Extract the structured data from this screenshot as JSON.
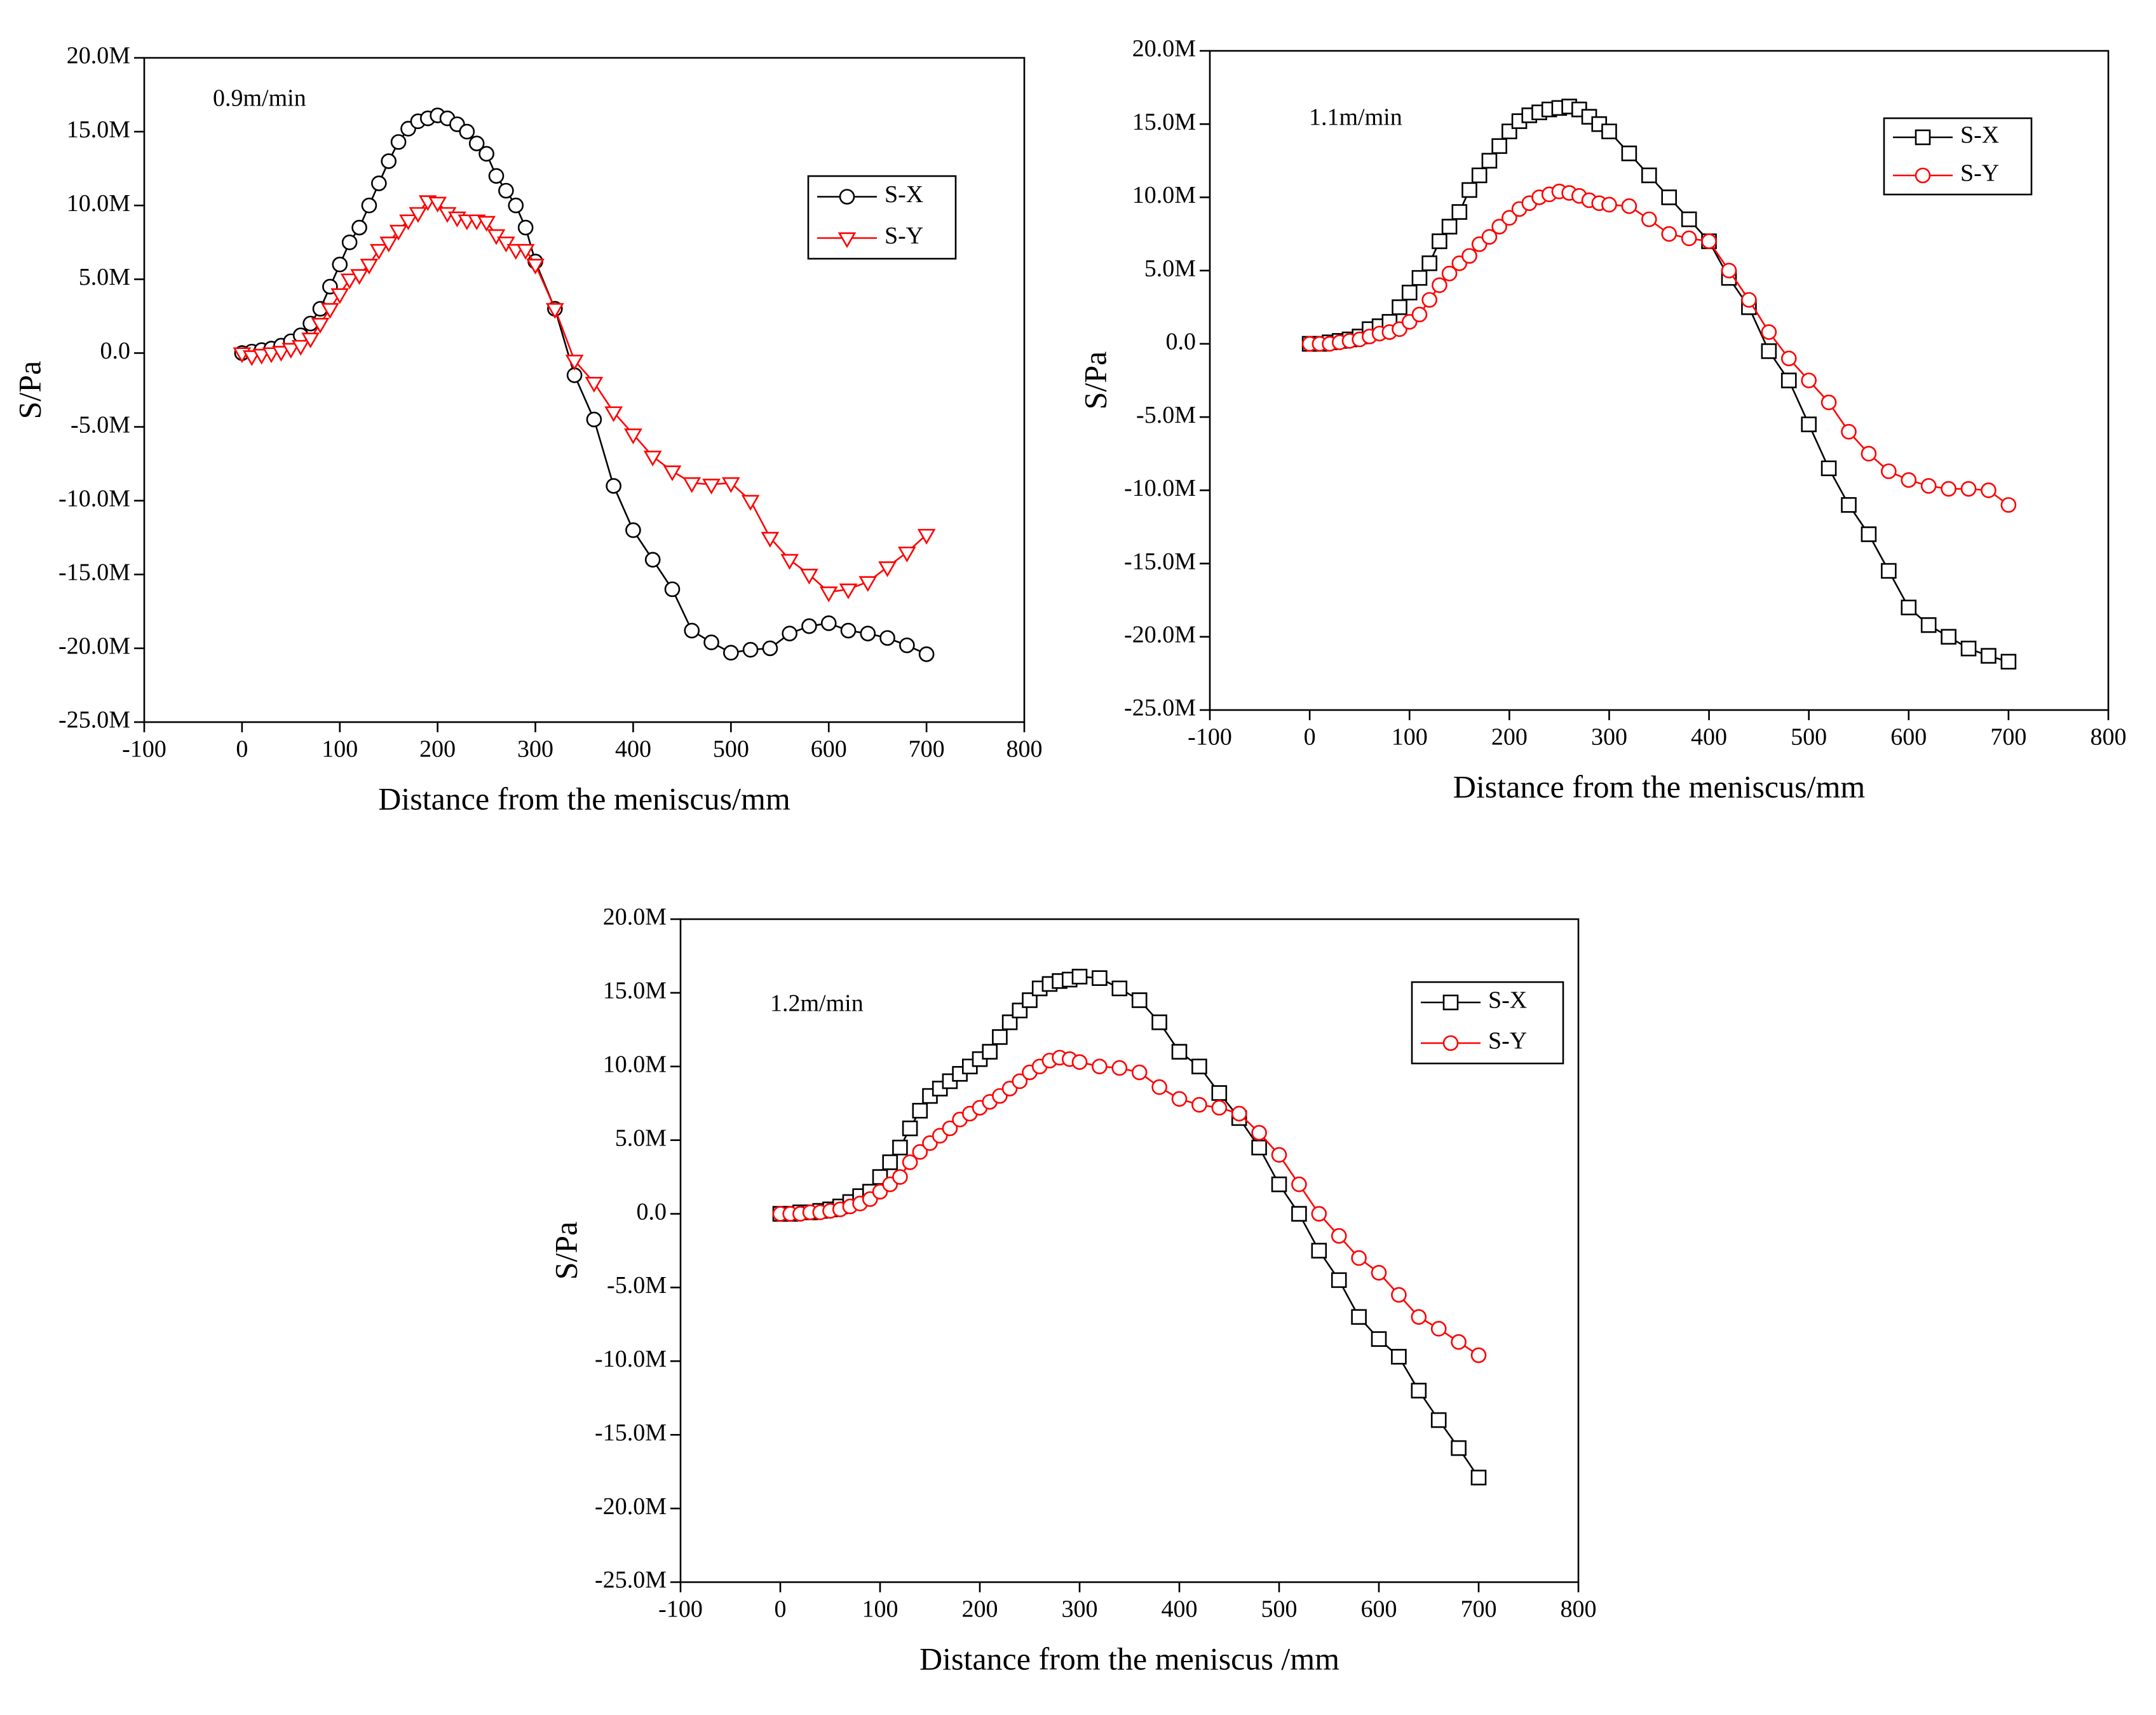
{
  "chart_data": [
    {
      "type": "line",
      "annotation": "0.9m/min",
      "xlabel": "Distance from the meniscus/mm",
      "ylabel": "S/Pa",
      "xlim": [
        -100,
        800
      ],
      "xticks": [
        -100,
        0,
        100,
        200,
        300,
        400,
        500,
        600,
        700,
        800
      ],
      "ylim": [
        -25000000.0,
        20000000.0
      ],
      "yticks": [
        {
          "value": -25000000.0,
          "label": "-25.0M"
        },
        {
          "value": -20000000.0,
          "label": "-20.0M"
        },
        {
          "value": -15000000.0,
          "label": "-15.0M"
        },
        {
          "value": -10000000.0,
          "label": "-10.0M"
        },
        {
          "value": -5000000.0,
          "label": "-5.0M"
        },
        {
          "value": 0,
          "label": "0.0"
        },
        {
          "value": 5000000.0,
          "label": "5.0M"
        },
        {
          "value": 10000000.0,
          "label": "10.0M"
        },
        {
          "value": 15000000.0,
          "label": "15.0M"
        },
        {
          "value": 20000000.0,
          "label": "20.0M"
        }
      ],
      "legend": "upper right",
      "x": [
        0,
        10,
        20,
        30,
        40,
        50,
        60,
        70,
        80,
        90,
        100,
        110,
        120,
        130,
        140,
        150,
        160,
        170,
        180,
        190,
        200,
        210,
        220,
        230,
        240,
        250,
        260,
        270,
        280,
        290,
        300,
        320,
        340,
        360,
        380,
        400,
        420,
        440,
        460,
        480,
        500,
        520,
        540,
        560,
        580,
        600,
        620,
        640,
        660,
        680,
        700
      ],
      "series": [
        {
          "name": "S-X",
          "color": "#000000",
          "marker": "circle",
          "values": [
            0,
            100000.0,
            200000.0,
            300000.0,
            500000.0,
            800000.0,
            1200000.0,
            2000000.0,
            3000000.0,
            4500000.0,
            6000000.0,
            7500000.0,
            8500000.0,
            10000000.0,
            11500000.0,
            13000000.0,
            14300000.0,
            15200000.0,
            15700000.0,
            15900000.0,
            16100000.0,
            15900000.0,
            15500000.0,
            15000000.0,
            14200000.0,
            13500000.0,
            12000000.0,
            11000000.0,
            10000000.0,
            8500000.0,
            6200000.0,
            3000000.0,
            -1500000.0,
            -4500000.0,
            -9000000.0,
            -12000000.0,
            -14000000.0,
            -16000000.0,
            -18800000.0,
            -19600000.0,
            -20300000.0,
            -20100000.0,
            -20000000.0,
            -19000000.0,
            -18500000.0,
            -18300000.0,
            -18800000.0,
            -19000000.0,
            -19300000.0,
            -19800000.0,
            -20400000.0
          ]
        },
        {
          "name": "S-Y",
          "color": "#ff0000",
          "marker": "triangle-down",
          "values": [
            0,
            -200000.0,
            -100000.0,
            0,
            100000.0,
            300000.0,
            500000.0,
            1000000.0,
            2000000.0,
            3000000.0,
            4000000.0,
            5000000.0,
            5300000.0,
            6000000.0,
            7000000.0,
            7500000.0,
            8300000.0,
            9000000.0,
            9500000.0,
            10300000.0,
            10200000.0,
            9500000.0,
            9200000.0,
            9000000.0,
            9000000.0,
            8900000.0,
            8000000.0,
            7500000.0,
            7000000.0,
            7000000.0,
            6000000.0,
            3000000.0,
            -500000.0,
            -2000000.0,
            -4000000.0,
            -5500000.0,
            -7000000.0,
            -8000000.0,
            -8800000.0,
            -8900000.0,
            -8800000.0,
            -10000000.0,
            -12500000.0,
            -14000000.0,
            -15000000.0,
            -16200000.0,
            -16000000.0,
            -15500000.0,
            -14500000.0,
            -13500000.0,
            -12300000.0
          ]
        }
      ]
    },
    {
      "type": "line",
      "annotation": "1.1m/min",
      "xlabel": "Distance from the meniscus/mm",
      "ylabel": "S/Pa",
      "xlim": [
        -100,
        800
      ],
      "xticks": [
        -100,
        0,
        100,
        200,
        300,
        400,
        500,
        600,
        700,
        800
      ],
      "ylim": [
        -25000000.0,
        20000000.0
      ],
      "yticks": [
        {
          "value": -25000000.0,
          "label": "-25.0M"
        },
        {
          "value": -20000000.0,
          "label": "-20.0M"
        },
        {
          "value": -15000000.0,
          "label": "-15.0M"
        },
        {
          "value": -10000000.0,
          "label": "-10.0M"
        },
        {
          "value": -5000000.0,
          "label": "-5.0M"
        },
        {
          "value": 0,
          "label": "0.0"
        },
        {
          "value": 5000000.0,
          "label": "5.0M"
        },
        {
          "value": 10000000.0,
          "label": "10.0M"
        },
        {
          "value": 15000000.0,
          "label": "15.0M"
        },
        {
          "value": 20000000.0,
          "label": "20.0M"
        }
      ],
      "legend": "upper right",
      "x": [
        0,
        10,
        20,
        30,
        40,
        50,
        60,
        70,
        80,
        90,
        100,
        110,
        120,
        130,
        140,
        150,
        160,
        170,
        180,
        190,
        200,
        210,
        220,
        230,
        240,
        250,
        260,
        270,
        280,
        290,
        300,
        320,
        340,
        360,
        380,
        400,
        420,
        440,
        460,
        480,
        500,
        520,
        540,
        560,
        580,
        600,
        620,
        640,
        660,
        680,
        700
      ],
      "series": [
        {
          "name": "S-X",
          "color": "#000000",
          "marker": "square",
          "values": [
            0,
            0,
            100000.0,
            200000.0,
            300000.0,
            500000.0,
            1000000.0,
            1200000.0,
            1500000.0,
            2500000.0,
            3500000.0,
            4500000.0,
            5500000.0,
            7000000.0,
            8000000.0,
            9000000.0,
            10500000.0,
            11500000.0,
            12500000.0,
            13500000.0,
            14500000.0,
            15200000.0,
            15600000.0,
            15800000.0,
            16000000.0,
            16100000.0,
            16200000.0,
            16000000.0,
            15500000.0,
            15000000.0,
            14500000.0,
            13000000.0,
            11500000.0,
            10000000.0,
            8500000.0,
            7000000.0,
            4500000.0,
            2500000.0,
            -500000.0,
            -2500000.0,
            -5500000.0,
            -8500000.0,
            -11000000.0,
            -13000000.0,
            -15500000.0,
            -18000000.0,
            -19200000.0,
            -20000000.0,
            -20800000.0,
            -21300000.0,
            -21700000.0
          ]
        },
        {
          "name": "S-Y",
          "color": "#ff0000",
          "marker": "circle",
          "values": [
            0,
            0,
            0,
            100000.0,
            200000.0,
            300000.0,
            500000.0,
            700000.0,
            800000.0,
            1000000.0,
            1500000.0,
            2000000.0,
            3000000.0,
            4000000.0,
            4800000.0,
            5500000.0,
            6000000.0,
            6800000.0,
            7300000.0,
            8000000.0,
            8600000.0,
            9200000.0,
            9600000.0,
            10000000.0,
            10200000.0,
            10400000.0,
            10300000.0,
            10100000.0,
            9800000.0,
            9600000.0,
            9500000.0,
            9400000.0,
            8500000.0,
            7500000.0,
            7200000.0,
            7000000.0,
            5000000.0,
            3000000.0,
            800000.0,
            -1000000.0,
            -2500000.0,
            -4000000.0,
            -6000000.0,
            -7500000.0,
            -8700000.0,
            -9300000.0,
            -9700000.0,
            -9900000.0,
            -9900000.0,
            -10000000.0,
            -11000000.0
          ]
        }
      ]
    },
    {
      "type": "line",
      "annotation": "1.2m/min",
      "xlabel": "Distance from the meniscus /mm",
      "ylabel": "S/Pa",
      "xlim": [
        -100,
        800
      ],
      "xticks": [
        -100,
        0,
        100,
        200,
        300,
        400,
        500,
        600,
        700,
        800
      ],
      "ylim": [
        -25000000.0,
        20000000.0
      ],
      "yticks": [
        {
          "value": -25000000.0,
          "label": "-25.0M"
        },
        {
          "value": -20000000.0,
          "label": "-20.0M"
        },
        {
          "value": -15000000.0,
          "label": "-15.0M"
        },
        {
          "value": -10000000.0,
          "label": "-10.0M"
        },
        {
          "value": -5000000.0,
          "label": "-5.0M"
        },
        {
          "value": 0,
          "label": "0.0"
        },
        {
          "value": 5000000.0,
          "label": "5.0M"
        },
        {
          "value": 10000000.0,
          "label": "10.0M"
        },
        {
          "value": 15000000.0,
          "label": "15.0M"
        },
        {
          "value": 20000000.0,
          "label": "20.0M"
        }
      ],
      "legend": "upper right",
      "x": [
        0,
        10,
        20,
        30,
        40,
        50,
        60,
        70,
        80,
        90,
        100,
        110,
        120,
        130,
        140,
        150,
        160,
        170,
        180,
        190,
        200,
        210,
        220,
        230,
        240,
        250,
        260,
        270,
        280,
        290,
        300,
        320,
        340,
        360,
        380,
        400,
        420,
        440,
        460,
        480,
        500,
        520,
        540,
        560,
        580,
        600,
        620,
        640,
        660,
        680,
        700
      ],
      "series": [
        {
          "name": "S-X",
          "color": "#000000",
          "marker": "square",
          "values": [
            0,
            0,
            100000.0,
            100000.0,
            200000.0,
            300000.0,
            500000.0,
            800000.0,
            1200000.0,
            1500000.0,
            2500000.0,
            3500000.0,
            4500000.0,
            5800000.0,
            7000000.0,
            8000000.0,
            8500000.0,
            9000000.0,
            9500000.0,
            10000000.0,
            10500000.0,
            11000000.0,
            12000000.0,
            13000000.0,
            13800000.0,
            14500000.0,
            15300000.0,
            15600000.0,
            15800000.0,
            15900000.0,
            16100000.0,
            16000000.0,
            15300000.0,
            14500000.0,
            13000000.0,
            11000000.0,
            10000000.0,
            8200000.0,
            6500000.0,
            4500000.0,
            2000000.0,
            0,
            -2500000.0,
            -4500000.0,
            -7000000.0,
            -8500000.0,
            -9700000.0,
            -12000000.0,
            -14000000.0,
            -15900000.0,
            -17900000.0
          ]
        },
        {
          "name": "S-Y",
          "color": "#ff0000",
          "marker": "circle",
          "values": [
            0,
            0,
            0,
            100000.0,
            100000.0,
            200000.0,
            300000.0,
            500000.0,
            700000.0,
            1000000.0,
            1500000.0,
            2000000.0,
            2500000.0,
            3500000.0,
            4200000.0,
            4800000.0,
            5300000.0,
            5800000.0,
            6400000.0,
            6800000.0,
            7200000.0,
            7600000.0,
            8000000.0,
            8500000.0,
            9000000.0,
            9600000.0,
            10000000.0,
            10400000.0,
            10600000.0,
            10500000.0,
            10300000.0,
            10000000.0,
            9900000.0,
            9600000.0,
            8600000.0,
            7800000.0,
            7400000.0,
            7200000.0,
            6800000.0,
            5500000.0,
            4000000.0,
            2000000.0,
            0,
            -1500000.0,
            -3000000.0,
            -4000000.0,
            -5500000.0,
            -7000000.0,
            -7800000.0,
            -8700000.0,
            -9600000.0
          ]
        }
      ]
    }
  ]
}
